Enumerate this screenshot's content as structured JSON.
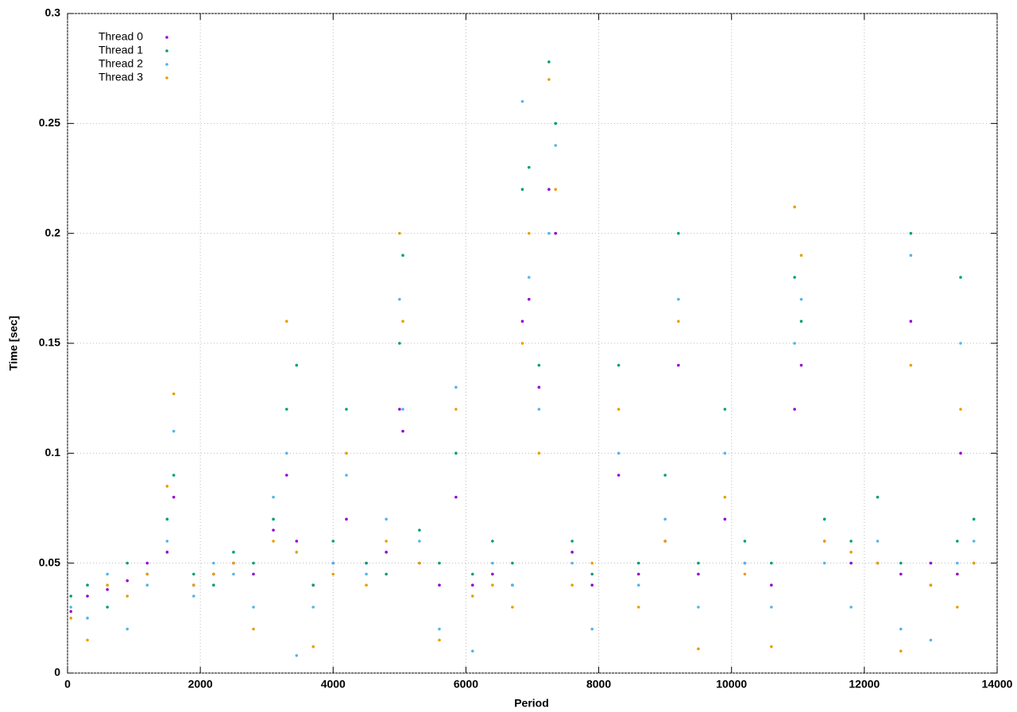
{
  "chart_data": {
    "type": "scatter",
    "x_label": "Period",
    "y_label": "Time [sec]",
    "xlim": [
      0,
      14000
    ],
    "xticks": [
      0,
      2000,
      4000,
      6000,
      8000,
      10000,
      12000,
      14000
    ],
    "ylim": [
      0,
      0.3
    ],
    "yticks": [
      0,
      0.05,
      0.1,
      0.15,
      0.2,
      0.25,
      0.3
    ],
    "grid": true,
    "legend": "top-left",
    "x": [
      50,
      300,
      600,
      900,
      1200,
      1500,
      1600,
      1900,
      2200,
      2500,
      2800,
      3100,
      3300,
      3450,
      3700,
      4000,
      4200,
      4500,
      4800,
      5000,
      5050,
      5300,
      5600,
      5850,
      6100,
      6400,
      6700,
      6850,
      6950,
      7100,
      7250,
      7350,
      7600,
      7900,
      8300,
      8600,
      9000,
      9200,
      9500,
      9900,
      10200,
      10600,
      10950,
      11050,
      11400,
      11800,
      12200,
      12550,
      12700,
      13000,
      13400,
      13450,
      13650
    ],
    "series": [
      {
        "name": "Thread 0",
        "color": "#9400d3",
        "values": [
          0.028,
          0.035,
          0.038,
          0.042,
          0.05,
          0.055,
          0.08,
          0.04,
          0.045,
          0.05,
          0.045,
          0.065,
          0.09,
          0.06,
          0.04,
          0.05,
          0.07,
          0.05,
          0.055,
          0.12,
          0.11,
          0.05,
          0.04,
          0.08,
          0.04,
          0.045,
          0.04,
          0.16,
          0.17,
          0.13,
          0.22,
          0.2,
          0.055,
          0.04,
          0.09,
          0.045,
          0.06,
          0.14,
          0.045,
          0.07,
          0.05,
          0.04,
          0.12,
          0.14,
          0.06,
          0.05,
          0.05,
          0.045,
          0.16,
          0.05,
          0.045,
          0.1,
          0.05
        ]
      },
      {
        "name": "Thread 1",
        "color": "#009e73",
        "values": [
          0.035,
          0.04,
          0.03,
          0.05,
          0.045,
          0.07,
          0.09,
          0.045,
          0.04,
          0.055,
          0.05,
          0.07,
          0.12,
          0.14,
          0.04,
          0.06,
          0.12,
          0.05,
          0.045,
          0.15,
          0.19,
          0.065,
          0.05,
          0.1,
          0.045,
          0.06,
          0.05,
          0.22,
          0.23,
          0.14,
          0.278,
          0.25,
          0.06,
          0.045,
          0.14,
          0.05,
          0.09,
          0.2,
          0.05,
          0.12,
          0.06,
          0.05,
          0.18,
          0.16,
          0.07,
          0.06,
          0.08,
          0.05,
          0.2,
          0.04,
          0.06,
          0.18,
          0.07
        ]
      },
      {
        "name": "Thread 2",
        "color": "#56b4e9",
        "values": [
          0.03,
          0.025,
          0.045,
          0.02,
          0.04,
          0.06,
          0.11,
          0.035,
          0.05,
          0.045,
          0.03,
          0.08,
          0.1,
          0.008,
          0.03,
          0.05,
          0.09,
          0.045,
          0.07,
          0.17,
          0.12,
          0.06,
          0.02,
          0.13,
          0.01,
          0.05,
          0.04,
          0.26,
          0.18,
          0.12,
          0.2,
          0.24,
          0.05,
          0.02,
          0.1,
          0.04,
          0.07,
          0.17,
          0.03,
          0.1,
          0.05,
          0.03,
          0.15,
          0.17,
          0.05,
          0.03,
          0.06,
          0.02,
          0.19,
          0.015,
          0.05,
          0.15,
          0.06
        ]
      },
      {
        "name": "Thread 3",
        "color": "#e69f00",
        "values": [
          0.025,
          0.015,
          0.04,
          0.035,
          0.045,
          0.085,
          0.127,
          0.04,
          0.045,
          0.05,
          0.02,
          0.06,
          0.16,
          0.055,
          0.012,
          0.045,
          0.1,
          0.04,
          0.06,
          0.2,
          0.16,
          0.05,
          0.015,
          0.12,
          0.035,
          0.04,
          0.03,
          0.15,
          0.2,
          0.1,
          0.27,
          0.22,
          0.04,
          0.05,
          0.12,
          0.03,
          0.06,
          0.16,
          0.011,
          0.08,
          0.045,
          0.012,
          0.212,
          0.19,
          0.06,
          0.055,
          0.05,
          0.01,
          0.14,
          0.04,
          0.03,
          0.12,
          0.05
        ]
      }
    ]
  }
}
